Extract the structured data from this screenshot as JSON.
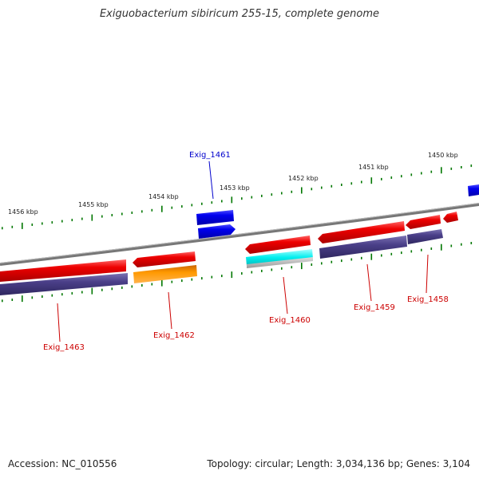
{
  "title": "Exiguobacterium sibiricum 255-15, complete genome",
  "footer": {
    "accession": "Accession: NC_010556",
    "stats": "Topology: circular; Length: 3,034,136 bp; Genes: 3,104"
  },
  "scale_labels": [
    "1456 kbp",
    "1455 kbp",
    "1454 kbp",
    "1453 kbp",
    "1452 kbp",
    "1451 kbp",
    "1450 kbp"
  ],
  "genes": [
    {
      "name": "Exig_1463",
      "color": "#cc0000"
    },
    {
      "name": "Exig_1462",
      "color": "#cc0000"
    },
    {
      "name": "Exig_1461",
      "color": "#0000cc"
    },
    {
      "name": "Exig_1460",
      "color": "#cc0000"
    },
    {
      "name": "Exig_1459",
      "color": "#cc0000"
    },
    {
      "name": "Exig_1458",
      "color": "#cc0000"
    }
  ],
  "colors": {
    "cds_red": "#ee0000",
    "cds_blue": "#0000ee",
    "gene_purple": "#4a3f88",
    "rna_orange": "#ff9900",
    "rna_cyan": "#00eeee",
    "backbone": "#888888",
    "tick_green": "#007700"
  }
}
